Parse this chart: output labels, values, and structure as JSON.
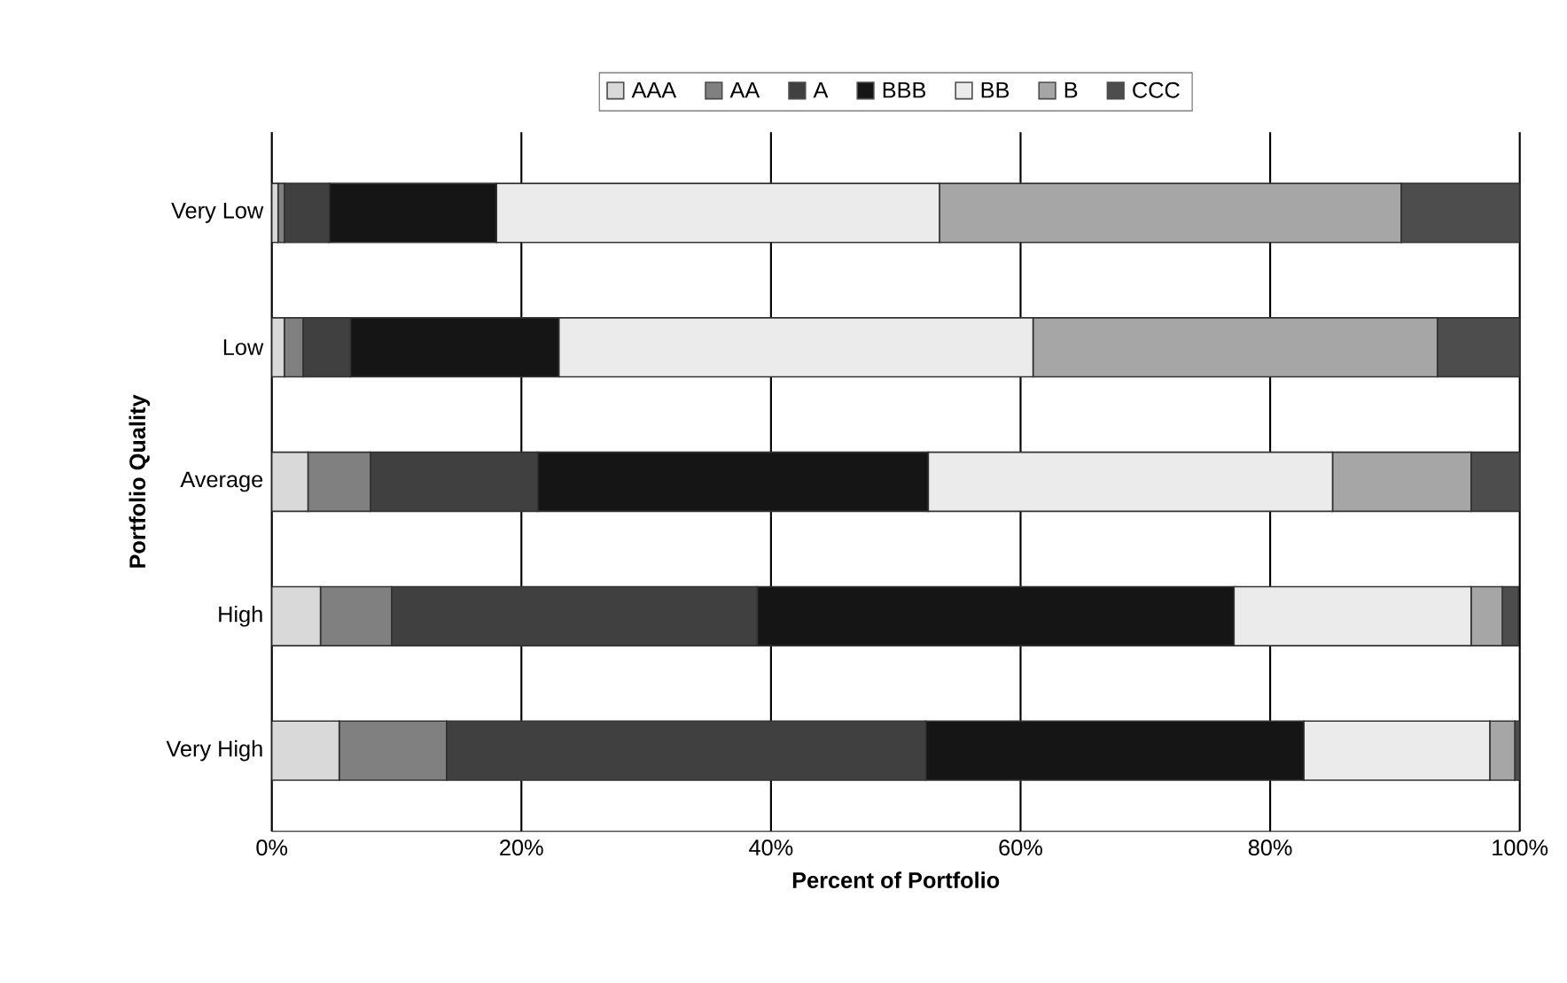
{
  "chart_data": {
    "type": "bar",
    "orientation": "horizontal",
    "stacked": true,
    "xlabel": "Percent of Portfolio",
    "ylabel": "Portfolio Quality",
    "categories": [
      "Very Low",
      "Low",
      "Average",
      "High",
      "Very High"
    ],
    "series": [
      {
        "name": "AAA",
        "color": "#d9d9d9",
        "values": [
          0.5,
          1.0,
          2.9,
          3.9,
          5.4
        ]
      },
      {
        "name": "AA",
        "color": "#808080",
        "values": [
          0.5,
          1.5,
          5.0,
          5.7,
          8.6
        ]
      },
      {
        "name": "A",
        "color": "#404040",
        "values": [
          3.6,
          3.8,
          13.4,
          29.3,
          38.4
        ]
      },
      {
        "name": "BBB",
        "color": "#151515",
        "values": [
          13.4,
          16.7,
          31.3,
          38.2,
          30.3
        ]
      },
      {
        "name": "BB",
        "color": "#ebebeb",
        "values": [
          35.5,
          38.0,
          32.4,
          19.0,
          14.9
        ]
      },
      {
        "name": "B",
        "color": "#a6a6a6",
        "values": [
          37.0,
          32.4,
          11.1,
          2.5,
          2.0
        ]
      },
      {
        "name": "CCC",
        "color": "#4d4d4d",
        "values": [
          9.5,
          6.6,
          3.9,
          1.3,
          0.4
        ]
      }
    ],
    "xlim": [
      0,
      100
    ],
    "xticks": [
      {
        "value": 0,
        "label": "0%"
      },
      {
        "value": 20,
        "label": "20%"
      },
      {
        "value": 40,
        "label": "40%"
      },
      {
        "value": 60,
        "label": "60%"
      },
      {
        "value": 80,
        "label": "80%"
      },
      {
        "value": 100,
        "label": "100%"
      }
    ],
    "grid": "x",
    "legend": "top"
  }
}
